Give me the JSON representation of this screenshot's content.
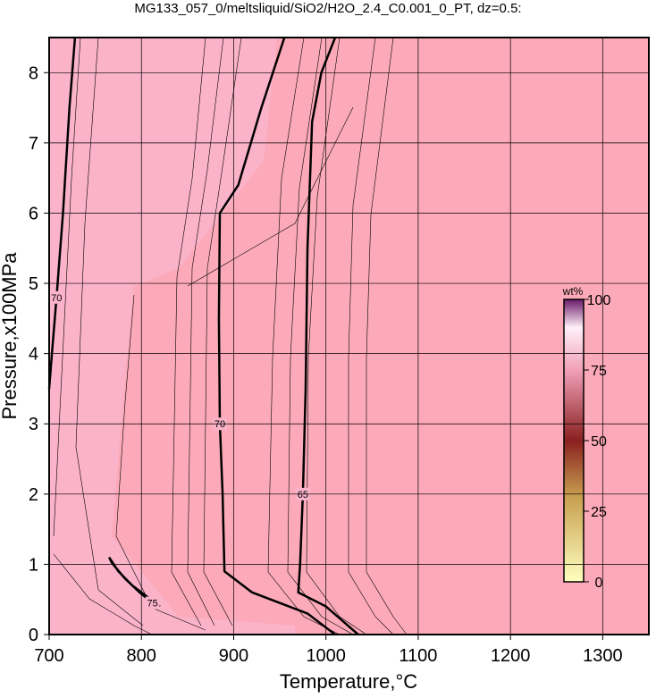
{
  "chart_data": {
    "type": "contour",
    "title": "MG133_057_0/meltsliquid/SiO2/H2O_2.4_C0.001_0_PT, dz=0.5:",
    "xlabel": "Temperature,°C",
    "ylabel": "Pressure,x100MPa",
    "xlim": [
      700,
      1350
    ],
    "ylim": [
      0,
      8.5
    ],
    "xticks": [
      700,
      800,
      900,
      1000,
      1100,
      1200,
      1300
    ],
    "yticks": [
      0,
      1,
      2,
      3,
      4,
      5,
      6,
      7,
      8
    ],
    "grid": true,
    "colorbar": {
      "label": "wt%",
      "lim": [
        0,
        100
      ],
      "ticks": [
        0,
        25,
        50,
        75,
        100
      ]
    },
    "contours": [
      {
        "level": 70,
        "x": [
          955,
          930,
          905,
          885,
          884,
          885,
          888,
          890,
          920,
          980,
          1010
        ],
        "y": [
          8.5,
          7.5,
          6.4,
          6.0,
          4.5,
          3.0,
          2.0,
          0.9,
          0.6,
          0.3,
          0
        ]
      },
      {
        "level": 65,
        "x": [
          1010,
          995,
          985,
          980,
          978,
          975,
          972,
          970,
          1000,
          1035
        ],
        "y": [
          8.5,
          8.0,
          7.3,
          5.5,
          3.5,
          2.0,
          1.0,
          0.6,
          0.4,
          0
        ]
      },
      {
        "level": 70,
        "x": [
          728,
          722,
          715,
          708,
          703,
          700
        ],
        "y": [
          8.5,
          7.5,
          6.0,
          4.8,
          4.0,
          3.5
        ]
      },
      {
        "level": 75,
        "x": [
          765,
          775,
          790,
          805,
          820,
          812,
          798,
          782,
          768,
          765
        ],
        "y": [
          1.1,
          0.9,
          0.7,
          0.55,
          0.4,
          0.45,
          0.6,
          0.8,
          1.02,
          1.1
        ]
      }
    ]
  }
}
